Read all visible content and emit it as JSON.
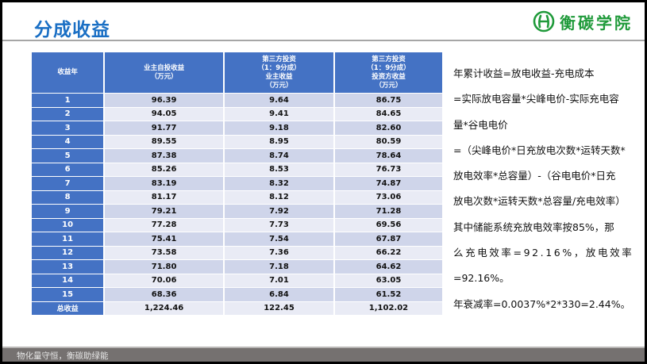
{
  "header": {
    "title": "分成收益",
    "logo_text": "衡碳学院",
    "logo_color": "#1f9a3a",
    "title_color": "#1a6fc4"
  },
  "table": {
    "columns": [
      {
        "lines": [
          "收益年"
        ]
      },
      {
        "lines": [
          "业主自投收益",
          "（万元）"
        ]
      },
      {
        "lines": [
          "第三方投资",
          "（1：9分成）",
          "业主收益",
          "（万元）"
        ]
      },
      {
        "lines": [
          "第三方投资",
          "（1：9分成）",
          "投资方收益",
          "（万元）"
        ]
      }
    ],
    "rows": [
      {
        "year": "1",
        "self": "96.39",
        "owner": "9.64",
        "investor": "86.75"
      },
      {
        "year": "2",
        "self": "94.05",
        "owner": "9.41",
        "investor": "84.65"
      },
      {
        "year": "3",
        "self": "91.77",
        "owner": "9.18",
        "investor": "82.60"
      },
      {
        "year": "4",
        "self": "89.55",
        "owner": "8.95",
        "investor": "80.59"
      },
      {
        "year": "5",
        "self": "87.38",
        "owner": "8.74",
        "investor": "78.64"
      },
      {
        "year": "6",
        "self": "85.26",
        "owner": "8.53",
        "investor": "76.73"
      },
      {
        "year": "7",
        "self": "83.19",
        "owner": "8.32",
        "investor": "74.87"
      },
      {
        "year": "8",
        "self": "81.17",
        "owner": "8.12",
        "investor": "73.06"
      },
      {
        "year": "9",
        "self": "79.21",
        "owner": "7.92",
        "investor": "71.28"
      },
      {
        "year": "10",
        "self": "77.28",
        "owner": "7.73",
        "investor": "69.56"
      },
      {
        "year": "11",
        "self": "75.41",
        "owner": "7.54",
        "investor": "67.87"
      },
      {
        "year": "12",
        "self": "73.58",
        "owner": "7.36",
        "investor": "66.22"
      },
      {
        "year": "13",
        "self": "71.80",
        "owner": "7.18",
        "investor": "64.62"
      },
      {
        "year": "14",
        "self": "70.06",
        "owner": "7.01",
        "investor": "63.05"
      },
      {
        "year": "15",
        "self": "68.36",
        "owner": "6.84",
        "investor": "61.52"
      }
    ],
    "total": {
      "year": "总收益",
      "self": "1,224.46",
      "owner": "122.45",
      "investor": "1,102.02"
    }
  },
  "notes": [
    "年累计收益=放电收益-充电成本",
    "=实际放电容量*尖峰电价-实际充电容",
    "量*谷电电价",
    "=（尖峰电价*日充放电次数*运转天数*",
    "放电效率*总容量）-（谷电电价*日充",
    "放电次数*运转天数*总容量/充电效率）",
    "其中储能系统充放电效率按85%，那",
    "么充电效率=92.16%，放电效率",
    "=92.16%。",
    "年衰减率=0.0037%*2*330=2.44%。"
  ],
  "footer": {
    "text": "物化量守恒，衡碳助绿能"
  }
}
